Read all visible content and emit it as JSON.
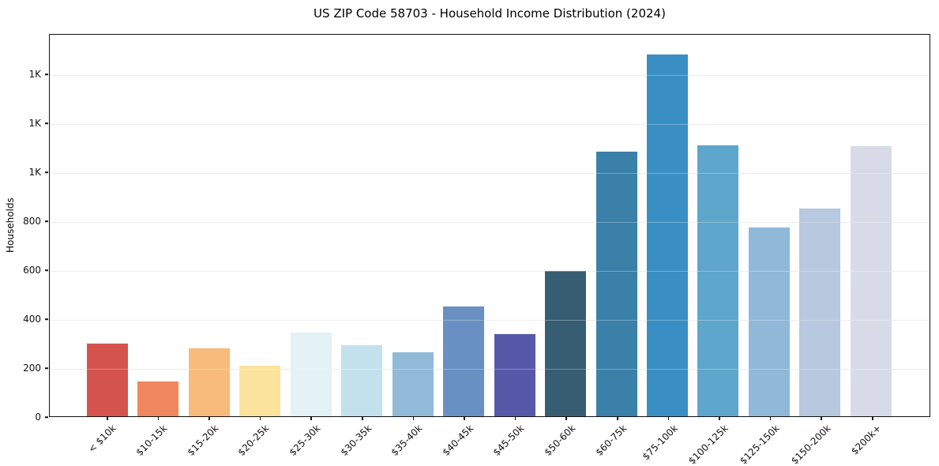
{
  "chart_data": {
    "type": "bar",
    "title": "US ZIP Code 58703 - Household Income Distribution (2024)",
    "xlabel": "",
    "ylabel": "Households",
    "ylim": [
      0,
      1565
    ],
    "grid": "horizontal",
    "legend_position": "none",
    "categories": [
      "< $10k",
      "$10-15k",
      "$15-20k",
      "$20-25k",
      "$25-30k",
      "$30-35k",
      "$35-40k",
      "$40-45k",
      "$45-50k",
      "$50-60k",
      "$60-75k",
      "$75-100k",
      "$100-125k",
      "$125-150k",
      "$150-200k",
      "$200k+"
    ],
    "values": [
      298,
      143,
      278,
      208,
      343,
      291,
      262,
      451,
      338,
      595,
      1085,
      1485,
      1112,
      776,
      851,
      1107
    ],
    "bar_colors": [
      "#d5534e",
      "#f0875f",
      "#f8bb7b",
      "#fbe39d",
      "#e4f1f5",
      "#c3e1ed",
      "#90bad8",
      "#6890c2",
      "#5659a7",
      "#375d72",
      "#3a80a8",
      "#398fc4",
      "#5ea6cb",
      "#90b8d8",
      "#b7c8df",
      "#d8dbe7"
    ],
    "yticks": [
      {
        "value": 0,
        "label": "0"
      },
      {
        "value": 200,
        "label": "200"
      },
      {
        "value": 400,
        "label": "400"
      },
      {
        "value": 600,
        "label": "600"
      },
      {
        "value": 800,
        "label": "800"
      },
      {
        "value": 1000,
        "label": "1K"
      },
      {
        "value": 1200,
        "label": "1K"
      },
      {
        "value": 1400,
        "label": "1K"
      }
    ],
    "colors": {
      "grid": "#e4e4e4",
      "spine": "#111111",
      "text": "#1a1a1a",
      "background": "#ffffff"
    }
  }
}
